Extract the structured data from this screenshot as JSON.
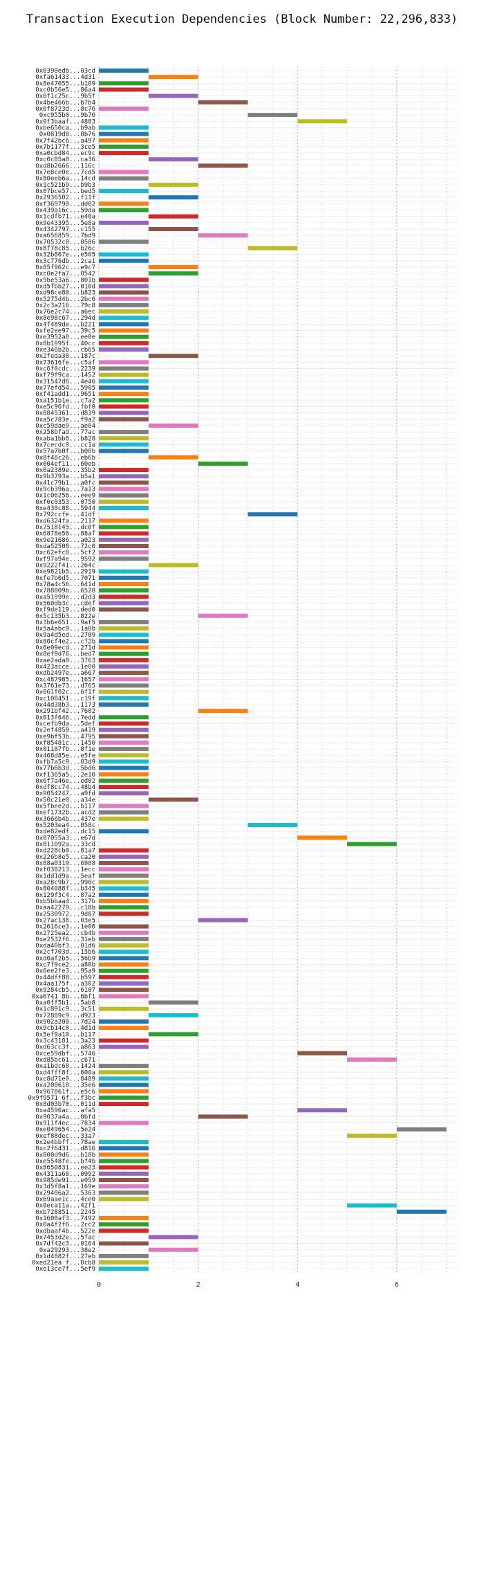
{
  "chart_data": {
    "type": "bar",
    "orientation": "horizontal",
    "title": "Transaction Execution Dependencies (Block Number: 22,296,833)",
    "xlabel": "",
    "ylabel": "",
    "xlim": [
      0,
      7.2
    ],
    "x_ticks": [
      0,
      2,
      4,
      6
    ],
    "grid": true,
    "legend": "none",
    "palette": [
      "#1f77b4",
      "#ff7f0e",
      "#2ca02c",
      "#d62728",
      "#9467bd",
      "#8c564b",
      "#e377c2",
      "#7f7f7f",
      "#bcbd22",
      "#17becf"
    ],
    "transactions": [
      {
        "label": "0x0390edb...03cd",
        "start": 0
      },
      {
        "label": "0xfa61433...4d31",
        "start": 1
      },
      {
        "label": "0x8e47055...b109",
        "start": 0
      },
      {
        "label": "0xc0b56e5...86a4",
        "start": 0
      },
      {
        "label": "0x0f1c25c...9b5f",
        "start": 1
      },
      {
        "label": "0x4be466b...b7b4",
        "start": 2
      },
      {
        "label": "0x6f8723d...8c76",
        "start": 0
      },
      {
        "label": "0xc955b0...9b76",
        "start": 3
      },
      {
        "label": "0x0f3baaf...4883",
        "start": 4
      },
      {
        "label": "0xbe650ca...b9ab",
        "start": 0
      },
      {
        "label": "0x0819d0...8b76",
        "start": 0
      },
      {
        "label": "0x7f42bc6...a497",
        "start": 0
      },
      {
        "label": "0x7b1177f...3ce5",
        "start": 0
      },
      {
        "label": "0xa0cbd84...ec9c",
        "start": 0
      },
      {
        "label": "0xc0c05a0...ca36",
        "start": 1
      },
      {
        "label": "0xd8b2666...116c",
        "start": 2
      },
      {
        "label": "0x7e8ce0e...7cd5",
        "start": 0
      },
      {
        "label": "0x80eeb6a...14cd",
        "start": 0
      },
      {
        "label": "0x1c521b9...b9b3",
        "start": 1
      },
      {
        "label": "0x07bce57...bed5",
        "start": 0
      },
      {
        "label": "0x2936502...f11f",
        "start": 1
      },
      {
        "label": "0xf369790...dd02",
        "start": 0
      },
      {
        "label": "0x439a16c...59da",
        "start": 0
      },
      {
        "label": "0x1cdfb71...e40a",
        "start": 1
      },
      {
        "label": "0x9e43395...5e8a",
        "start": 0
      },
      {
        "label": "0x4342797...c155",
        "start": 1
      },
      {
        "label": "0xa656859...7bd9",
        "start": 2
      },
      {
        "label": "0x70532c0...0586",
        "start": 0
      },
      {
        "label": "0x8f78c85...b26c",
        "start": 3
      },
      {
        "label": "0x32b867e...e505",
        "start": 0
      },
      {
        "label": "0x3c776db...2ca1",
        "start": 0
      },
      {
        "label": "0x85f962c...e9c7",
        "start": 1
      },
      {
        "label": "0xc0e2fa7...0542",
        "start": 1
      },
      {
        "label": "0x9be53a6...801b",
        "start": 0
      },
      {
        "label": "0xd5fbb27...010d",
        "start": 0
      },
      {
        "label": "0xd98ce80...b823",
        "start": 0
      },
      {
        "label": "0x5275d4b...2bc6",
        "start": 0
      },
      {
        "label": "0x2c3a216...79c8",
        "start": 0
      },
      {
        "label": "0x76e2c74...a6ec",
        "start": 0
      },
      {
        "label": "0x8e98c67...294d",
        "start": 0
      },
      {
        "label": "0x4f489de...b221",
        "start": 0
      },
      {
        "label": "0xfe2ee97...39c5",
        "start": 0
      },
      {
        "label": "0xe3952a8...ee0e",
        "start": 0
      },
      {
        "label": "0x8b1995f...40cc",
        "start": 0
      },
      {
        "label": "0xe346b2b...cb65",
        "start": 0
      },
      {
        "label": "0x2feda38...187c",
        "start": 1
      },
      {
        "label": "0x73616fe...c5af",
        "start": 0
      },
      {
        "label": "0xc6f0cdc...2239",
        "start": 0
      },
      {
        "label": "0xf79f9ca...1452",
        "start": 0
      },
      {
        "label": "0x31547d6...4e46",
        "start": 0
      },
      {
        "label": "0x77efd54...5905",
        "start": 0
      },
      {
        "label": "0xf41add1...9651",
        "start": 0
      },
      {
        "label": "0xa151b1e...c7a2",
        "start": 0
      },
      {
        "label": "0xe5c96fd...fbf0",
        "start": 0
      },
      {
        "label": "0x8845361...d819",
        "start": 0
      },
      {
        "label": "0xa5c783e...f9a2",
        "start": 0
      },
      {
        "label": "0xc59dae9...ae04",
        "start": 1
      },
      {
        "label": "0x258bfad...77ac",
        "start": 0
      },
      {
        "label": "0xaba1bb8...b828",
        "start": 0
      },
      {
        "label": "0x7cecdc0...cc1a",
        "start": 0
      },
      {
        "label": "0x57a7b8f...b00b",
        "start": 0
      },
      {
        "label": "0x8f48c26...eb6b",
        "start": 1
      },
      {
        "label": "0x004ef11...60eb",
        "start": 2
      },
      {
        "label": "0x0a2389e...35b2",
        "start": 0
      },
      {
        "label": "0x9b3793a...b5a1",
        "start": 0
      },
      {
        "label": "0x41c79b1...a0fc",
        "start": 0
      },
      {
        "label": "0x9cb396a...7a13",
        "start": 0
      },
      {
        "label": "0x1c06256...eee9",
        "start": 0
      },
      {
        "label": "0xf0c0353...0750",
        "start": 0
      },
      {
        "label": "0xe430c88...5944",
        "start": 0
      },
      {
        "label": "0x792ccfe...41df",
        "start": 3
      },
      {
        "label": "0xd6324fa...2117",
        "start": 0
      },
      {
        "label": "0x2518145...dc0f",
        "start": 0
      },
      {
        "label": "0x6878e56...88af",
        "start": 0
      },
      {
        "label": "0x9e21686...a023",
        "start": 0
      },
      {
        "label": "0xda52508...72c0",
        "start": 0
      },
      {
        "label": "0xc62efc8...5cf2",
        "start": 0
      },
      {
        "label": "0xf97a94e...9592",
        "start": 0
      },
      {
        "label": "0x9222f41...264c",
        "start": 1
      },
      {
        "label": "0xe9821b5...2919",
        "start": 0
      },
      {
        "label": "0xfe7b0d5...7071",
        "start": 0
      },
      {
        "label": "0x78a4c56...641d",
        "start": 0
      },
      {
        "label": "0x788809b...6528",
        "start": 0
      },
      {
        "label": "0xa51999e...d2d3",
        "start": 0
      },
      {
        "label": "0x560db3c...cdef",
        "start": 0
      },
      {
        "label": "0xf9de119...ded0",
        "start": 0
      },
      {
        "label": "0x5c135b3...822e",
        "start": 2
      },
      {
        "label": "0x3b6e651...9af5",
        "start": 0
      },
      {
        "label": "0x5a4abc0...1a0b",
        "start": 0
      },
      {
        "label": "0x9a4d5ed...2789",
        "start": 0
      },
      {
        "label": "0x80cf4e2...cf2b",
        "start": 0
      },
      {
        "label": "0x6e09ecd...271d",
        "start": 0
      },
      {
        "label": "0x8ef9d76...bed7",
        "start": 0
      },
      {
        "label": "0xae2ada0...3763",
        "start": 0
      },
      {
        "label": "0x423acce...1e00",
        "start": 0
      },
      {
        "label": "0xdb2497e...a667",
        "start": 0
      },
      {
        "label": "0xc487985...1657",
        "start": 0
      },
      {
        "label": "0x3761e73...d765",
        "start": 0
      },
      {
        "label": "0x061f02c...6f1f",
        "start": 0
      },
      {
        "label": "0xc108451...c19f",
        "start": 0
      },
      {
        "label": "0x44d38b3...1173",
        "start": 0
      },
      {
        "label": "0x291bf42...7602",
        "start": 2
      },
      {
        "label": "0x013f646...7edd",
        "start": 0
      },
      {
        "label": "0xcefb9da...5def",
        "start": 0
      },
      {
        "label": "0x2ef4850...a419",
        "start": 0
      },
      {
        "label": "0xe9bf53b...4795",
        "start": 0
      },
      {
        "label": "0xf85481c...1450",
        "start": 0
      },
      {
        "label": "0x01107fb...8f1e",
        "start": 0
      },
      {
        "label": "0x468d85e...e5fe",
        "start": 0
      },
      {
        "label": "0xfb7a5c9...83d9",
        "start": 0
      },
      {
        "label": "0x77b6b3d...5bd6",
        "start": 0
      },
      {
        "label": "0xf1365a5...2e10",
        "start": 0
      },
      {
        "label": "0x6f7a46e...ed02",
        "start": 0
      },
      {
        "label": "0xdf8cc74...48b4",
        "start": 0
      },
      {
        "label": "0x9054247...a9fd",
        "start": 0
      },
      {
        "label": "0x50c21e0...a34e",
        "start": 1
      },
      {
        "label": "0x5fbee2d...b117",
        "start": 0
      },
      {
        "label": "0xef1732b...acd2",
        "start": 0
      },
      {
        "label": "0x3666b4b...437e",
        "start": 0
      },
      {
        "label": "0x5203ea4...058c",
        "start": 3
      },
      {
        "label": "0xde82edf...dc15",
        "start": 0
      },
      {
        "label": "0x07055a3...e67d",
        "start": 4
      },
      {
        "label": "0x811092a...33cd",
        "start": 5
      },
      {
        "label": "0xd228cb0...81a7",
        "start": 0
      },
      {
        "label": "0x226b8e5...ca20",
        "start": 0
      },
      {
        "label": "0x88a0319...6988",
        "start": 0
      },
      {
        "label": "0xf030213...1ecc",
        "start": 0
      },
      {
        "label": "0x1dd1d9a...5eaf",
        "start": 0
      },
      {
        "label": "0xa28c9b7...990c",
        "start": 0
      },
      {
        "label": "0x804088f...b345",
        "start": 0
      },
      {
        "label": "0x129f3c4...87a2",
        "start": 0
      },
      {
        "label": "0xb5bbaa4...317b",
        "start": 0
      },
      {
        "label": "0xaa42279...c18b",
        "start": 0
      },
      {
        "label": "0x2530972...9d87",
        "start": 0
      },
      {
        "label": "0x27ac138...03e5",
        "start": 2
      },
      {
        "label": "0x2616ce3...1e06",
        "start": 0
      },
      {
        "label": "0x2725ea2...cb4b",
        "start": 0
      },
      {
        "label": "0xe2532f6...31eb",
        "start": 0
      },
      {
        "label": "0xda40bf3...01d6",
        "start": 0
      },
      {
        "label": "0x2cf703d...15b6",
        "start": 0
      },
      {
        "label": "0xd0af2b5...56b9",
        "start": 0
      },
      {
        "label": "0xc7f9ce2...a80b",
        "start": 0
      },
      {
        "label": "0x6ee2fe3...95a9",
        "start": 0
      },
      {
        "label": "0x44dff88...b597",
        "start": 0
      },
      {
        "label": "0x4aa175f...a302",
        "start": 0
      },
      {
        "label": "0x9284cb5...6107",
        "start": 0
      },
      {
        "label": "0xa6741 8b...6bf1",
        "start": 0
      },
      {
        "label": "0xa0ff5b1...5ab8",
        "start": 1
      },
      {
        "label": "0x1c891c9...3c51",
        "start": 0
      },
      {
        "label": "0x72889c9...d923",
        "start": 1
      },
      {
        "label": "0x902a200...7d24",
        "start": 0
      },
      {
        "label": "0x9cb14c0...4d1d",
        "start": 0
      },
      {
        "label": "0x5ef9a10...b117",
        "start": 1
      },
      {
        "label": "0x3c43181...3a23",
        "start": 0
      },
      {
        "label": "0xd63cc3f...a863",
        "start": 0
      },
      {
        "label": "0xce59dbf...5746",
        "start": 4
      },
      {
        "label": "0xd85bc61...c671",
        "start": 5
      },
      {
        "label": "0xa1bdc68...1424",
        "start": 0
      },
      {
        "label": "0xd4fff8f...600a",
        "start": 0
      },
      {
        "label": "0xc8d71e0...8489",
        "start": 0
      },
      {
        "label": "0xa200618...35e6",
        "start": 0
      },
      {
        "label": "0x967861f...e5c6",
        "start": 0
      },
      {
        "label": "0x9f9571 6f...f3bc",
        "start": 0
      },
      {
        "label": "0x8d03b70...011d",
        "start": 0
      },
      {
        "label": "0xa4596ac...afa5",
        "start": 4
      },
      {
        "label": "0x9037a4a...0bfd",
        "start": 2
      },
      {
        "label": "0x911f4ec...7834",
        "start": 0
      },
      {
        "label": "0xe049654...5e24",
        "start": 6
      },
      {
        "label": "0xef88dec...33a7",
        "start": 5
      },
      {
        "label": "0x2e4bbff...78ae",
        "start": 0
      },
      {
        "label": "0xc2f6431...d816",
        "start": 0
      },
      {
        "label": "0x800d9d6...b18b",
        "start": 0
      },
      {
        "label": "0xe5548fe...bf4b",
        "start": 0
      },
      {
        "label": "0x8650831...ee23",
        "start": 0
      },
      {
        "label": "0x4311a68...0992",
        "start": 0
      },
      {
        "label": "0x985de91...e059",
        "start": 0
      },
      {
        "label": "0x3d5f8a1...169e",
        "start": 0
      },
      {
        "label": "0x29406a2...5363",
        "start": 0
      },
      {
        "label": "0x69aae1c...4ce0",
        "start": 0
      },
      {
        "label": "0x0eca11a...42f1",
        "start": 5
      },
      {
        "label": "0xb728851...2245",
        "start": 6
      },
      {
        "label": "0x1600af3...7492",
        "start": 0
      },
      {
        "label": "0x0a4f2f6...2cc2",
        "start": 0
      },
      {
        "label": "0xdbaaf4b...522e",
        "start": 0
      },
      {
        "label": "0x7453d2e...5fac",
        "start": 1
      },
      {
        "label": "0x7df42c3...0164",
        "start": 0
      },
      {
        "label": "0xa29293...38e2",
        "start": 1
      },
      {
        "label": "0x1d4882f...27eb",
        "start": 0
      },
      {
        "label": "0xed21ea f...0cb8",
        "start": 0
      },
      {
        "label": "0xe13ce7f...5ef9",
        "start": 0
      }
    ]
  }
}
